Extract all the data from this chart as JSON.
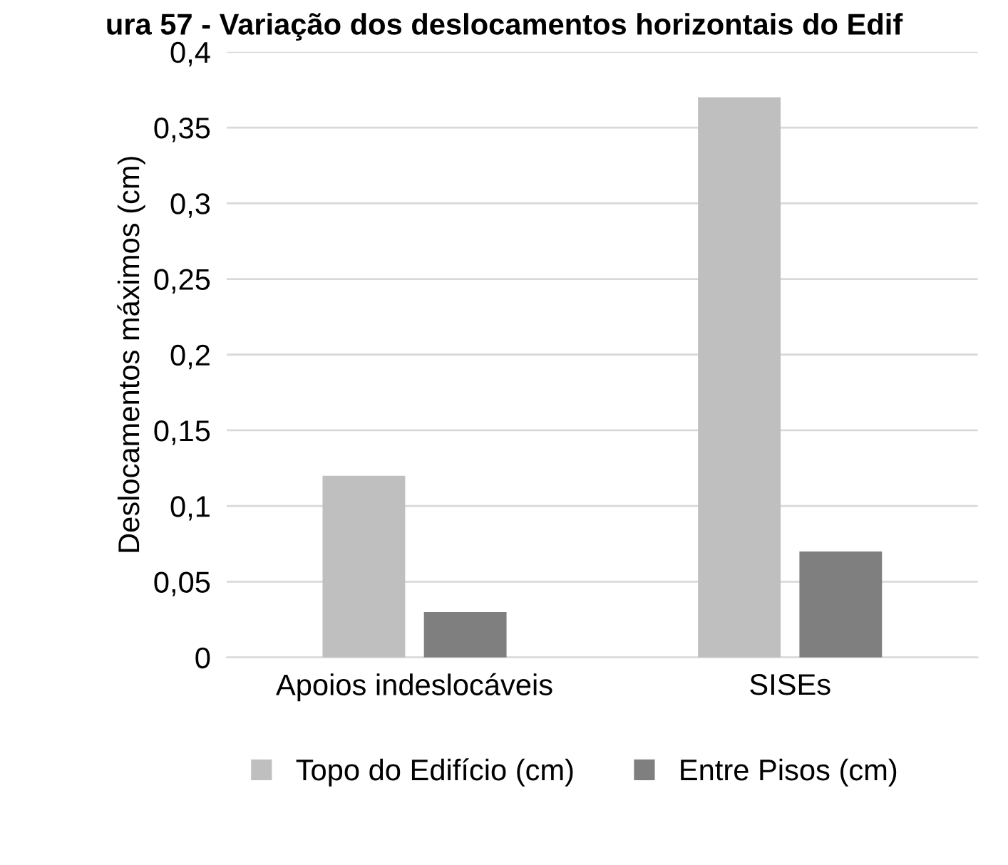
{
  "chart_data": {
    "type": "bar",
    "title": "ura 57 - Variação dos deslocamentos horizontais do Edif",
    "ylabel": "Deslocamentos máximos (cm)",
    "categories": [
      "Apoios indeslocáveis",
      "SISEs"
    ],
    "series": [
      {
        "name": "Topo do Edifício (cm)",
        "color": "#bfbfbf",
        "values": [
          0.12,
          0.37
        ]
      },
      {
        "name": "Entre Pisos (cm)",
        "color": "#7f7f7f",
        "values": [
          0.03,
          0.07
        ]
      }
    ],
    "ylim": [
      0,
      0.4
    ],
    "yticks": [
      {
        "value": 0,
        "label": "0"
      },
      {
        "value": 0.05,
        "label": "0,05"
      },
      {
        "value": 0.1,
        "label": "0,1"
      },
      {
        "value": 0.15,
        "label": "0,15"
      },
      {
        "value": 0.2,
        "label": "0,2"
      },
      {
        "value": 0.25,
        "label": "0,25"
      },
      {
        "value": 0.3,
        "label": "0,3"
      },
      {
        "value": 0.35,
        "label": "0,35"
      },
      {
        "value": 0.4,
        "label": "0,4"
      }
    ],
    "grid": "y",
    "legend": "bottom"
  }
}
